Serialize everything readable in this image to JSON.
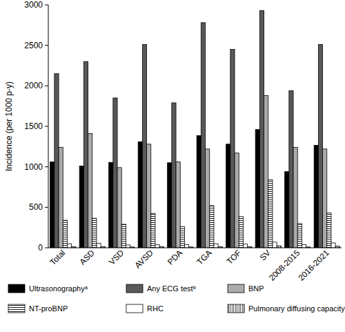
{
  "chart_data": {
    "type": "bar",
    "y_label": "Incidence (per 1000 p-y)",
    "categories": [
      "Total",
      "ASD",
      "VSD",
      "AVSD",
      "PDA",
      "TGA",
      "TOF",
      "SV",
      "2008-2015",
      "2016-2021"
    ],
    "series": [
      {
        "name": "Ultrasonographyᵃ",
        "color": "#000000",
        "values": [
          1060,
          1010,
          1055,
          1310,
          1050,
          1385,
          1280,
          1460,
          940,
          1265
        ]
      },
      {
        "name": "Any ECG testᵇ",
        "color": "#595959",
        "values": [
          2150,
          2300,
          1850,
          2510,
          1790,
          2780,
          2450,
          2930,
          1940,
          2510
        ]
      },
      {
        "name": "BNP",
        "color": "#ababab",
        "values": [
          1240,
          1410,
          990,
          1280,
          1060,
          1220,
          1170,
          1880,
          1240,
          1220
        ]
      },
      {
        "name": "NT-proBNP",
        "color": "#ffffff",
        "values": [
          340,
          365,
          290,
          425,
          260,
          520,
          385,
          840,
          300,
          430
        ]
      },
      {
        "name": "RHC",
        "color": "#ffffff",
        "values": [
          50,
          55,
          35,
          40,
          40,
          50,
          45,
          70,
          40,
          60
        ]
      },
      {
        "name": "Pulmonary diffusing capacity testᶜ",
        "color": "#ffffff",
        "values": [
          15,
          15,
          10,
          15,
          10,
          15,
          15,
          25,
          10,
          20
        ]
      }
    ],
    "ylim": [
      0,
      3000
    ],
    "yticks": [
      0,
      500,
      1000,
      1500,
      2000,
      2500,
      3000
    ],
    "grid": false,
    "legend": "bottom"
  }
}
